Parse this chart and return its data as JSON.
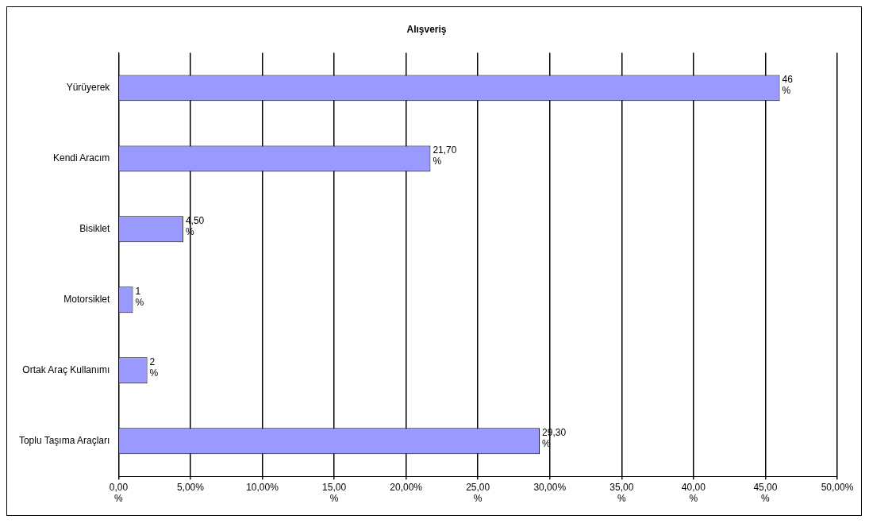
{
  "chart_data": {
    "type": "bar",
    "orientation": "horizontal",
    "title": "Alışveriş",
    "categories": [
      "Yürüyerek",
      "Kendi Aracım",
      "Bisiklet",
      "Motorsiklet",
      "Ortak Araç Kullanımı",
      "Toplu Taşıma Araçları"
    ],
    "values": [
      46,
      21.7,
      4.5,
      1,
      2,
      29.3
    ],
    "value_labels": [
      "46 %",
      "21,70 %",
      "4,50 %",
      "1 %",
      "2 %",
      "29,30 %"
    ],
    "color": "#9999ff",
    "xlim": [
      0,
      50
    ],
    "xticks": [
      {
        "value": 0,
        "label": "0,00 %"
      },
      {
        "value": 5,
        "label": "5,00%"
      },
      {
        "value": 10,
        "label": "10,00%"
      },
      {
        "value": 15,
        "label": "15,00 %"
      },
      {
        "value": 20,
        "label": "20,00%"
      },
      {
        "value": 25,
        "label": "25,00 %"
      },
      {
        "value": 30,
        "label": "30,00%"
      },
      {
        "value": 35,
        "label": "35,00 %"
      },
      {
        "value": 40,
        "label": "40,00 %"
      },
      {
        "value": 45,
        "label": "45,00 %"
      },
      {
        "value": 50,
        "label": "50,00%"
      }
    ],
    "grid": "x",
    "legend": false
  }
}
